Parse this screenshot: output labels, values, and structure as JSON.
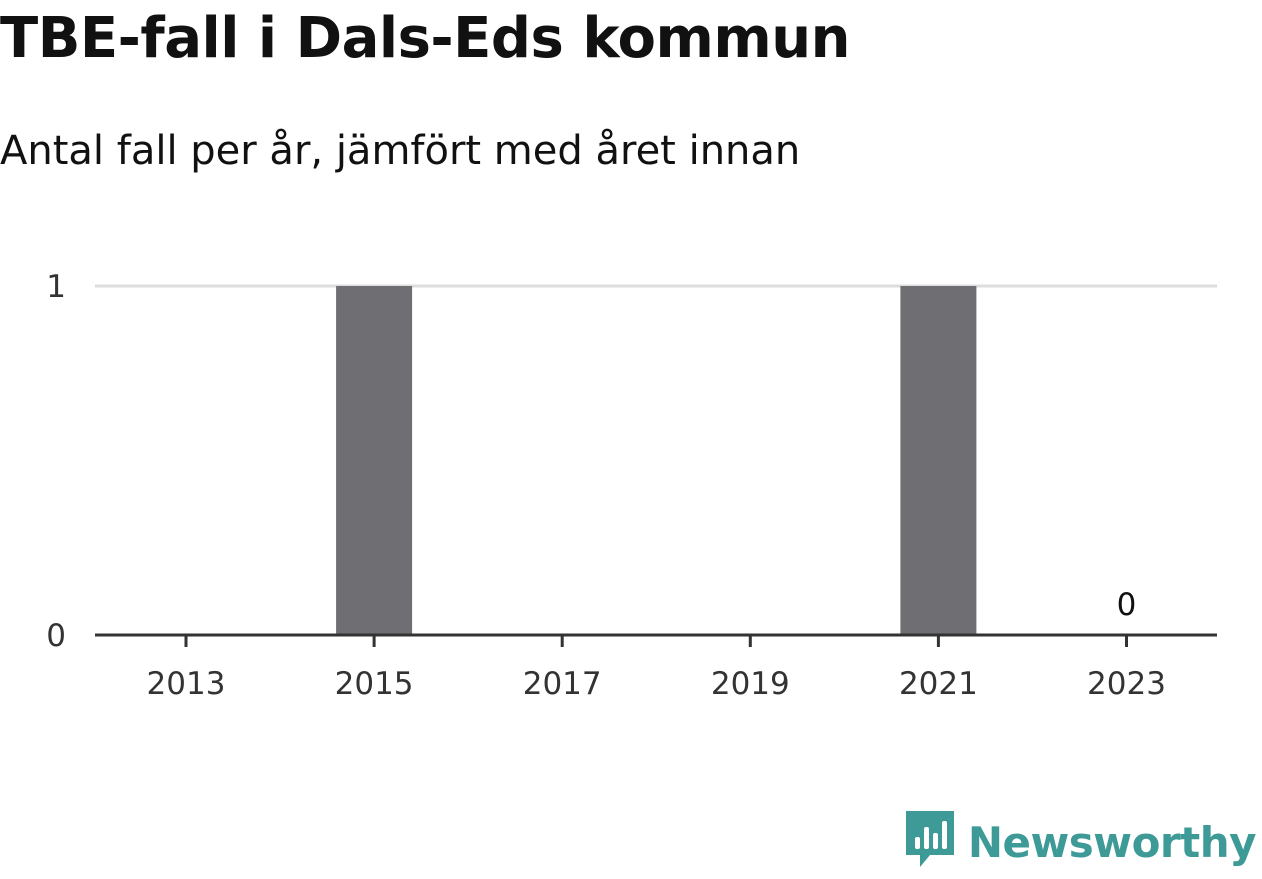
{
  "title": "TBE-fall i Dals-Eds kommun",
  "subtitle": "Antal fall per år, jämfört med året innan",
  "brand": {
    "name": "Newsworthy",
    "color": "#3d9a96",
    "icon": "newsworthy-logo-icon"
  },
  "colors": {
    "bar": "#6e6e73",
    "grid": "#dddddd",
    "axis": "#333333"
  },
  "chart_data": {
    "type": "bar",
    "categories": [
      "2013",
      "2014",
      "2015",
      "2016",
      "2017",
      "2018",
      "2019",
      "2020",
      "2021",
      "2022",
      "2023"
    ],
    "values": [
      0,
      0,
      1,
      0,
      0,
      0,
      0,
      0,
      1,
      0,
      0
    ],
    "x_tick_labels": [
      "2013",
      "2015",
      "2017",
      "2019",
      "2021",
      "2023"
    ],
    "y_ticks": [
      0,
      1
    ],
    "ylim": [
      0,
      1
    ],
    "grid": true,
    "data_labels": [
      {
        "category": "2023",
        "text": "0"
      }
    ]
  }
}
